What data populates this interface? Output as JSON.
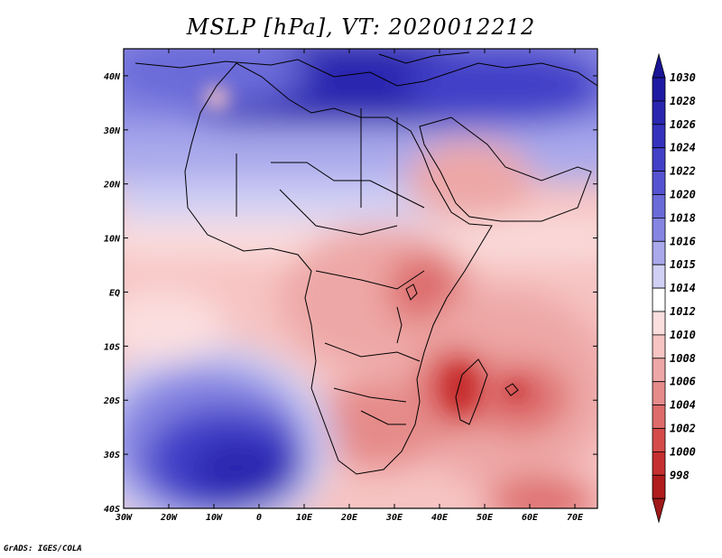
{
  "title": "MSLP [hPa], VT: 2020012212",
  "credit": "GrADS: IGES/COLA",
  "map": {
    "lon_range": [
      -30,
      75
    ],
    "lat_range": [
      -40,
      45
    ],
    "lon_ticks": [
      {
        "value": -30,
        "label": "30W"
      },
      {
        "value": -20,
        "label": "20W"
      },
      {
        "value": -10,
        "label": "10W"
      },
      {
        "value": 0,
        "label": "0"
      },
      {
        "value": 10,
        "label": "10E"
      },
      {
        "value": 20,
        "label": "20E"
      },
      {
        "value": 30,
        "label": "30E"
      },
      {
        "value": 40,
        "label": "40E"
      },
      {
        "value": 50,
        "label": "50E"
      },
      {
        "value": 60,
        "label": "60E"
      },
      {
        "value": 70,
        "label": "70E"
      }
    ],
    "lat_ticks": [
      {
        "value": 40,
        "label": "40N"
      },
      {
        "value": 30,
        "label": "30N"
      },
      {
        "value": 20,
        "label": "20N"
      },
      {
        "value": 10,
        "label": "10N"
      },
      {
        "value": 0,
        "label": "EQ"
      },
      {
        "value": -10,
        "label": "10S"
      },
      {
        "value": -20,
        "label": "20S"
      },
      {
        "value": -30,
        "label": "30S"
      },
      {
        "value": -40,
        "label": "40S"
      }
    ]
  },
  "colorbar": {
    "levels": [
      {
        "label": "1030",
        "color": "#1f1aa3"
      },
      {
        "label": "1028",
        "color": "#2a26b0"
      },
      {
        "label": "1026",
        "color": "#3532bd"
      },
      {
        "label": "1024",
        "color": "#4340c8"
      },
      {
        "label": "1022",
        "color": "#5553d1"
      },
      {
        "label": "1020",
        "color": "#6b6ad9"
      },
      {
        "label": "1018",
        "color": "#8685e2"
      },
      {
        "label": "1016",
        "color": "#a9a9ec"
      },
      {
        "label": "1015",
        "color": "#d0d0f5"
      },
      {
        "label": "1014",
        "color": "#ffffff"
      },
      {
        "label": "1012",
        "color": "#fbdede"
      },
      {
        "label": "1010",
        "color": "#f6c4c3"
      },
      {
        "label": "1008",
        "color": "#eda7a6"
      },
      {
        "label": "1006",
        "color": "#e58b8a"
      },
      {
        "label": "1004",
        "color": "#dd6b6a"
      },
      {
        "label": "1002",
        "color": "#d44b4a"
      },
      {
        "label": "1000",
        "color": "#c62f2f"
      },
      {
        "label": "998",
        "color": "#b01c1c"
      }
    ],
    "top_triangle_color": "#1a1496",
    "bottom_triangle_color": "#a01818"
  },
  "features": {
    "highs": [
      {
        "name": "mediterranean-high",
        "lon": 20,
        "lat": 38,
        "hpa": 1030
      },
      {
        "name": "south-atlantic-high",
        "lon": -8,
        "lat": -30,
        "hpa": 1026
      }
    ],
    "lows": [
      {
        "name": "madagascar-low",
        "lon": 45,
        "lat": -18,
        "hpa": 1002
      },
      {
        "name": "mascarene-low",
        "lon": 58,
        "lat": -19,
        "hpa": 1003
      }
    ]
  }
}
